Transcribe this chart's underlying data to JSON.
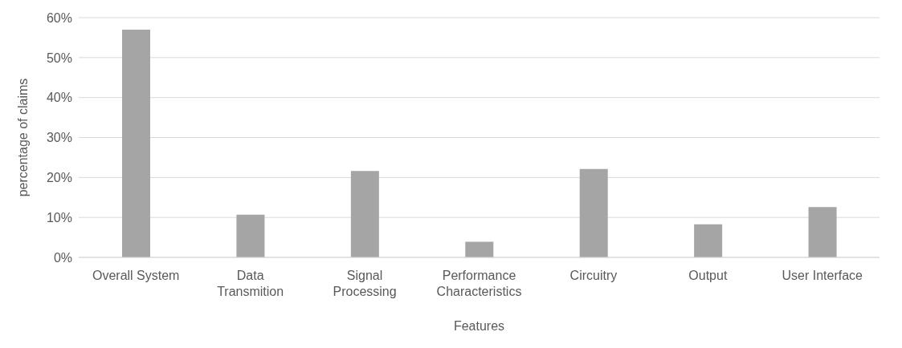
{
  "chart_data": {
    "type": "bar",
    "xlabel": "Features",
    "ylabel": "percentage of claims",
    "categories": [
      "Overall System",
      "Data Transmition",
      "Signal Processing",
      "Performance Characteristics",
      "Circuitry",
      "Output",
      "User Interface"
    ],
    "values": [
      57,
      10.7,
      21.6,
      3.9,
      22.1,
      8.3,
      12.6
    ],
    "color": "#a5a5a5",
    "ylim": [
      0,
      60
    ],
    "yticks": [
      {
        "value": 0,
        "label": "0%"
      },
      {
        "value": 10,
        "label": "10%"
      },
      {
        "value": 20,
        "label": "20%"
      },
      {
        "value": 30,
        "label": "30%"
      },
      {
        "value": 40,
        "label": "40%"
      },
      {
        "value": 50,
        "label": "50%"
      },
      {
        "value": 60,
        "label": "60%"
      }
    ],
    "grid": "y"
  }
}
